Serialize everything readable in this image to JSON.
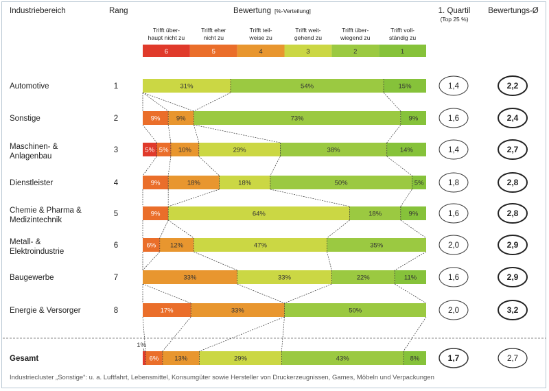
{
  "header": {
    "col_sector": "Industriebereich",
    "col_rank": "Rang",
    "col_rating": "Bewertung",
    "col_rating_unit": "[%-Verteilung]",
    "col_quartile": "1. Quartil",
    "col_quartile_sub": "(Top 25 %)",
    "col_mean": "Bewertungs-Ø"
  },
  "colors": {
    "6": "#e03a2b",
    "5": "#ea6e2a",
    "4": "#e8962f",
    "3": "#cbd744",
    "2": "#9bc941",
    "1": "#86c23a"
  },
  "chart_data": {
    "type": "bar",
    "subtype": "stacked-horizontal-100",
    "title": "Bewertung [%-Verteilung]",
    "levels": [
      {
        "code": "6",
        "line1": "Trifft über-",
        "line2": "haupt nicht zu"
      },
      {
        "code": "5",
        "line1": "Trifft eher",
        "line2": "nicht zu"
      },
      {
        "code": "4",
        "line1": "Trifft teil-",
        "line2": "weise zu"
      },
      {
        "code": "3",
        "line1": "Trifft weit-",
        "line2": "gehend zu"
      },
      {
        "code": "2",
        "line1": "Trifft über-",
        "line2": "wiegend zu"
      },
      {
        "code": "1",
        "line1": "Trifft voll-",
        "line2": "ständig zu"
      }
    ],
    "rows": [
      {
        "name": [
          "Automotive"
        ],
        "rank": "1",
        "values": [
          0,
          0,
          0,
          31,
          54,
          15
        ],
        "labels": [
          "",
          "",
          "",
          "31%",
          "54%",
          "15%"
        ],
        "quartile": "1,4",
        "mean": "2,2"
      },
      {
        "name": [
          "Sonstige"
        ],
        "rank": "2",
        "values": [
          0,
          9,
          9,
          0,
          73,
          9
        ],
        "labels": [
          "",
          "9%",
          "9%",
          "",
          "73%",
          "9%"
        ],
        "quartile": "1,6",
        "mean": "2,4"
      },
      {
        "name": [
          "Maschinen- &",
          "Anlagenbau"
        ],
        "rank": "3",
        "values": [
          5,
          5,
          10,
          29,
          38,
          14
        ],
        "labels": [
          "5%",
          "5%",
          "10%",
          "29%",
          "38%",
          "14%"
        ],
        "quartile": "1,4",
        "mean": "2,7"
      },
      {
        "name": [
          "Dienstleister"
        ],
        "rank": "4",
        "values": [
          0,
          9,
          18,
          18,
          50,
          5
        ],
        "labels": [
          "",
          "9%",
          "18%",
          "18%",
          "50%",
          "5%"
        ],
        "quartile": "1,8",
        "mean": "2,8"
      },
      {
        "name": [
          "Chemie & Pharma &",
          "Medizintechnik"
        ],
        "rank": "5",
        "values": [
          0,
          9,
          0,
          64,
          18,
          9
        ],
        "labels": [
          "",
          "9%",
          "",
          "64%",
          "18%",
          "9%"
        ],
        "quartile": "1,6",
        "mean": "2,8"
      },
      {
        "name": [
          "Metall- &",
          "Elektroindustrie"
        ],
        "rank": "6",
        "values": [
          0,
          6,
          12,
          47,
          35,
          0
        ],
        "labels": [
          "",
          "6%",
          "12%",
          "47%",
          "35%",
          ""
        ],
        "quartile": "2,0",
        "mean": "2,9"
      },
      {
        "name": [
          "Baugewerbe"
        ],
        "rank": "7",
        "values": [
          0,
          0,
          33,
          33,
          22,
          11
        ],
        "labels": [
          "",
          "",
          "33%",
          "33%",
          "22%",
          "11%"
        ],
        "quartile": "1,6",
        "mean": "2,9"
      },
      {
        "name": [
          "Energie & Versorger"
        ],
        "rank": "8",
        "values": [
          0,
          17,
          33,
          0,
          50,
          0
        ],
        "labels": [
          "",
          "17%",
          "33%",
          "",
          "50%",
          ""
        ],
        "quartile": "2,0",
        "mean": "3,2"
      },
      {
        "name": [
          "Gesamt"
        ],
        "rank": "",
        "values": [
          1,
          6,
          13,
          29,
          43,
          8
        ],
        "labels": [
          "1%",
          "6%",
          "13%",
          "29%",
          "43%",
          "8%"
        ],
        "quartile": "1,7",
        "mean": "2,7",
        "total": true
      }
    ]
  },
  "footnote": "Industriecluster „Sonstige“: u. a. Luftfahrt, Lebensmittel, Konsumgüter sowie Hersteller von Druckerzeugnissen, Games, Möbeln und Verpackungen"
}
